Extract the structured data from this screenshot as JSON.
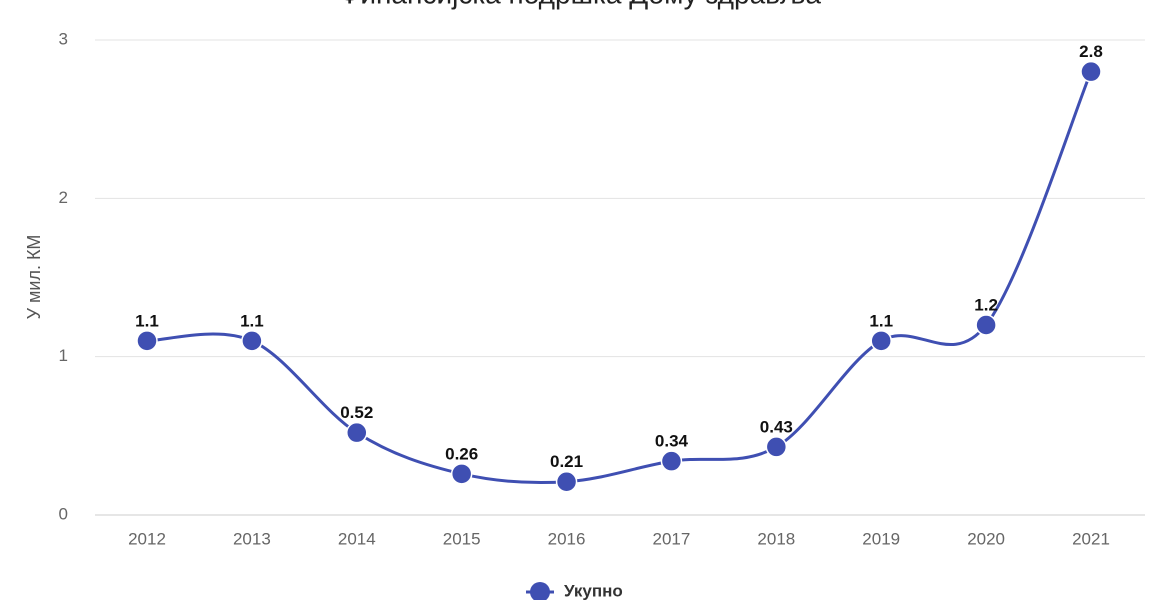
{
  "chart_data": {
    "type": "line",
    "title": "Финансијска подршка Дому здравља",
    "y_label": "У мил. КМ",
    "categories": [
      "2012",
      "2013",
      "2014",
      "2015",
      "2016",
      "2017",
      "2018",
      "2019",
      "2020",
      "2021"
    ],
    "series": [
      {
        "name": "Укупно",
        "color": "#3f4fb2",
        "values": [
          1.1,
          1.1,
          0.52,
          0.26,
          0.21,
          0.34,
          0.43,
          1.1,
          1.2,
          2.8
        ]
      }
    ],
    "ylim": [
      0,
      3
    ],
    "yticks": [
      0,
      1,
      2,
      3
    ],
    "grid": true,
    "legend": "bottom",
    "smooth": true
  }
}
